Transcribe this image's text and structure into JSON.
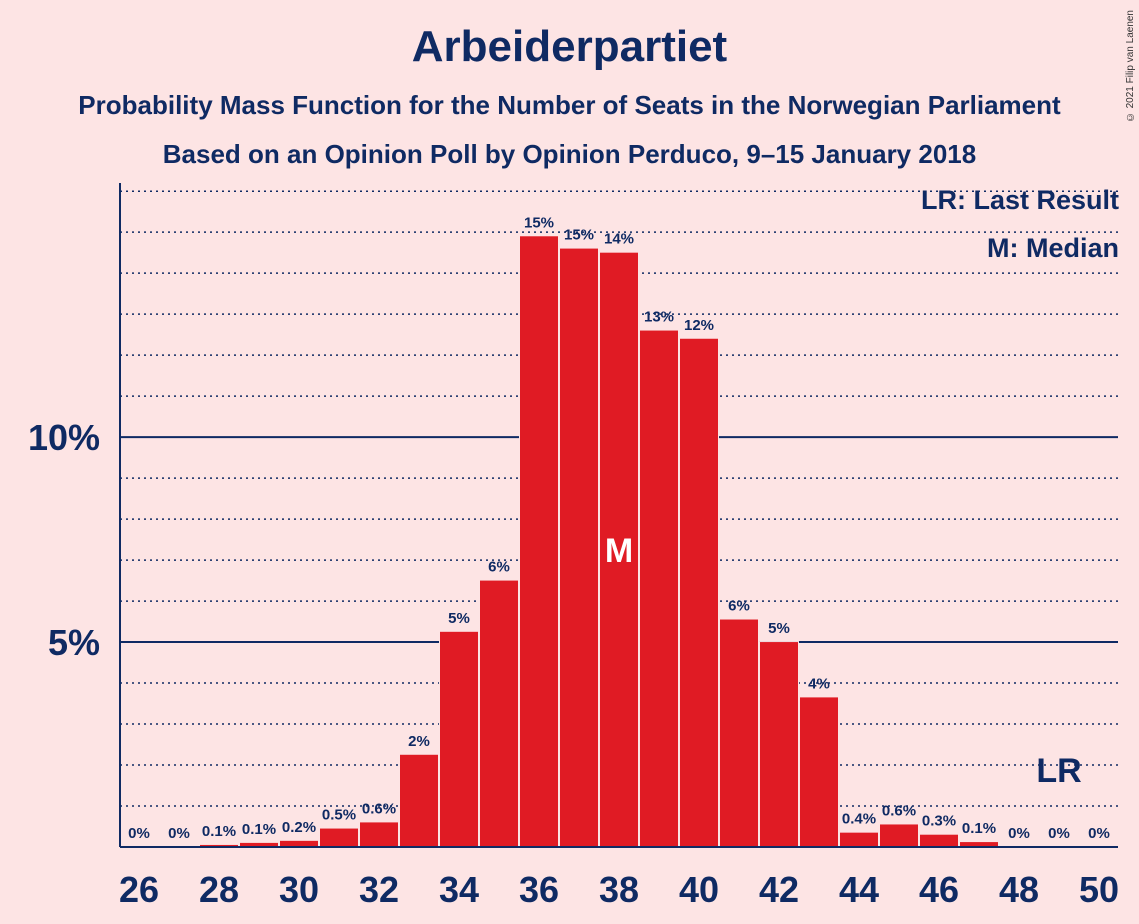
{
  "title": "Arbeiderpartiet",
  "subtitle_1": "Probability Mass Function for the Number of Seats in the Norwegian Parliament",
  "subtitle_2": "Based on an Opinion Poll by Opinion Perduco, 9–15 January 2018",
  "legend": {
    "last_result": "LR: Last Result",
    "median": "M: Median"
  },
  "copyright": "© 2021 Filip van Laenen",
  "colors": {
    "background": "#fde4e4",
    "bar": "#e01b24",
    "text": "#0f2a63"
  },
  "chart_data": {
    "type": "bar",
    "x": [
      26,
      27,
      28,
      29,
      30,
      31,
      32,
      33,
      34,
      35,
      36,
      37,
      38,
      39,
      40,
      41,
      42,
      43,
      44,
      45,
      46,
      47,
      48,
      49,
      50
    ],
    "values": [
      0,
      0,
      0.05,
      0.1,
      0.15,
      0.45,
      0.6,
      2.25,
      5.25,
      6.5,
      14.9,
      14.6,
      14.5,
      12.6,
      12.4,
      5.55,
      5.0,
      3.65,
      0.35,
      0.55,
      0.3,
      0.12,
      0,
      0,
      0
    ],
    "value_labels": [
      "0%",
      "0%",
      "0.1%",
      "0.1%",
      "0.2%",
      "0.5%",
      "0.6%",
      "2%",
      "5%",
      "6%",
      "15%",
      "15%",
      "14%",
      "13%",
      "12%",
      "6%",
      "5%",
      "4%",
      "0.4%",
      "0.6%",
      "0.3%",
      "0.1%",
      "0%",
      "0%",
      "0%"
    ],
    "x_tick_labels": [
      "26",
      "28",
      "30",
      "32",
      "34",
      "36",
      "38",
      "40",
      "42",
      "44",
      "46",
      "48",
      "50"
    ],
    "y_tick_labels": [
      "5%",
      "10%"
    ],
    "y_ticks": [
      5,
      10
    ],
    "ylim": [
      0,
      16.2
    ],
    "grid": "dotted every 1%, solid at 5% and 10%",
    "median": 38,
    "median_label": "M",
    "last_result": 49,
    "last_result_label": "LR"
  }
}
